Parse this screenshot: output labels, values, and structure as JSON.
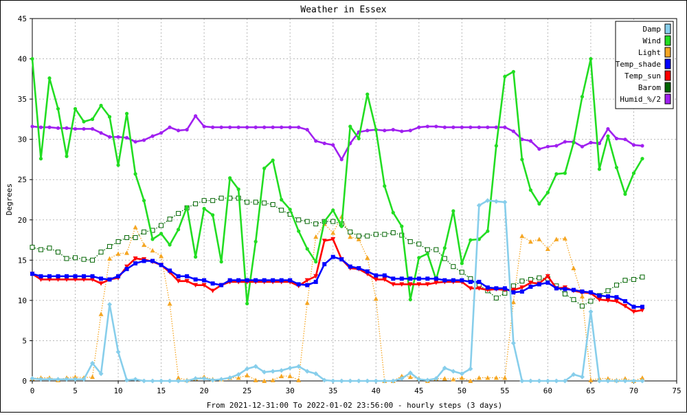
{
  "chart_data": {
    "type": "line",
    "title": "Weather in Essex",
    "xlabel": "From 2021-12-31:00 To 2022-01-02 23:56:00 - hourly steps (3 days)",
    "ylabel": "Degrees",
    "xlim": [
      0,
      75
    ],
    "ylim": [
      0,
      45
    ],
    "xticks": [
      0,
      5,
      10,
      15,
      20,
      25,
      30,
      35,
      40,
      45,
      50,
      55,
      60,
      65,
      70,
      75
    ],
    "yticks": [
      0,
      5,
      10,
      15,
      20,
      25,
      30,
      35,
      40,
      45
    ],
    "grid": true,
    "legend_position": "top-right",
    "x": [
      0,
      1,
      2,
      3,
      4,
      5,
      6,
      7,
      8,
      9,
      10,
      11,
      12,
      13,
      14,
      15,
      16,
      17,
      18,
      19,
      20,
      21,
      22,
      23,
      24,
      25,
      26,
      27,
      28,
      29,
      30,
      31,
      32,
      33,
      34,
      35,
      36,
      37,
      38,
      39,
      40,
      41,
      42,
      43,
      44,
      45,
      46,
      47,
      48,
      49,
      50,
      51,
      52,
      53,
      54,
      55,
      56,
      57,
      58,
      59,
      60,
      61,
      62,
      63,
      64,
      65,
      66,
      67,
      68,
      69,
      70,
      71
    ],
    "series": [
      {
        "name": "Damp",
        "color": "#87ceeb",
        "style": "solid",
        "marker": "diamond",
        "values": [
          0.3,
          0.2,
          0.2,
          0.2,
          0.2,
          0.2,
          0.2,
          2.2,
          0.9,
          9.5,
          3.6,
          0.1,
          0.2,
          0,
          0,
          0,
          0,
          0,
          0,
          0.3,
          0.3,
          0.1,
          0.2,
          0.4,
          0.8,
          1.5,
          1.8,
          1.1,
          1.2,
          1.3,
          1.6,
          1.8,
          1.2,
          0.9,
          0.1,
          0,
          0,
          0,
          0,
          0,
          0,
          0,
          0,
          0.3,
          1,
          0.2,
          0.1,
          0.3,
          1.6,
          1.2,
          0.9,
          1.5,
          21.8,
          22.4,
          22.3,
          22.2,
          4.7,
          0,
          0,
          0,
          0,
          0,
          0,
          0.8,
          0.5,
          8.6,
          0,
          0,
          0,
          0,
          0,
          0
        ]
      },
      {
        "name": "Wind",
        "color": "#22dd22",
        "style": "solid",
        "marker": "circle",
        "values": [
          40,
          27.6,
          37.6,
          33.8,
          27.9,
          33.8,
          32.2,
          32.5,
          34.2,
          32.8,
          26.8,
          33.2,
          25.7,
          22.4,
          17.6,
          18.3,
          16.9,
          18.8,
          21.6,
          15.4,
          21.4,
          20.6,
          14.8,
          25.2,
          23.8,
          9.6,
          17.3,
          26.4,
          27.4,
          22.5,
          21.3,
          18.6,
          16.4,
          14.8,
          19.8,
          21.2,
          19.2,
          31.6,
          30.1,
          35.6,
          31.2,
          24.2,
          20.9,
          19.2,
          10.1,
          15.3,
          15.8,
          12.6,
          16.5,
          21.1,
          14.6,
          17.5,
          17.6,
          18.6,
          29.2,
          37.8,
          38.4,
          27.5,
          23.7,
          22,
          23.4,
          25.7,
          25.8,
          29.6,
          35.3,
          40,
          26.3,
          30.4,
          26.5,
          23.2,
          25.8,
          27.6
        ]
      },
      {
        "name": "Light",
        "color": "#f5a623",
        "style": "dotted",
        "marker": "triangle",
        "values": [
          0.3,
          0.4,
          0.4,
          0.1,
          0.4,
          0.5,
          0.4,
          0.5,
          8.3,
          15.2,
          15.8,
          15.9,
          19.1,
          16.9,
          16.2,
          15.5,
          9.6,
          0.4,
          0.1,
          0.3,
          0.5,
          0.2,
          0.2,
          0.4,
          0.4,
          0.7,
          0.1,
          0,
          0.1,
          0.6,
          0.6,
          0.1,
          9.7,
          17.9,
          19.5,
          18.4,
          20.4,
          17.9,
          17.6,
          15.3,
          10.2,
          0,
          0,
          0.6,
          0.5,
          0.3,
          0,
          0.3,
          0.3,
          0.2,
          0.4,
          0,
          0.4,
          0.4,
          0.4,
          0.4,
          9.8,
          18,
          17.3,
          17.6,
          16.4,
          17.6,
          17.7,
          14,
          10.5,
          0.1,
          0.3,
          0.3,
          0.1,
          0.3,
          0,
          0.4
        ]
      },
      {
        "name": "Temp_shade",
        "color": "#0000ff",
        "style": "solid",
        "marker": "square",
        "values": [
          13.3,
          13,
          13,
          13,
          13,
          13,
          13,
          13,
          12.7,
          12.6,
          13,
          13.9,
          14.6,
          14.9,
          14.9,
          14.4,
          13.7,
          13,
          13,
          12.6,
          12.5,
          12.1,
          11.9,
          12.5,
          12.5,
          12.5,
          12.5,
          12.5,
          12.5,
          12.5,
          12.5,
          12,
          11.9,
          12.3,
          14.5,
          15.4,
          15.1,
          14.2,
          14,
          13.6,
          13.1,
          13.1,
          12.7,
          12.7,
          12.7,
          12.7,
          12.7,
          12.7,
          12.5,
          12.5,
          12.5,
          12.3,
          12.3,
          11.6,
          11.5,
          11.5,
          11,
          11.1,
          11.7,
          12,
          12.2,
          11.5,
          11.4,
          11.3,
          11.1,
          11,
          10.6,
          10.5,
          10.4,
          9.9,
          9.2,
          9.2
        ]
      },
      {
        "name": "Temp_sun",
        "color": "#ff0000",
        "style": "solid",
        "marker": "down-triangle",
        "values": [
          13.3,
          12.6,
          12.6,
          12.6,
          12.6,
          12.6,
          12.6,
          12.6,
          12.1,
          12.6,
          12.8,
          14.2,
          15.2,
          15.1,
          14.8,
          14.4,
          13.5,
          12.4,
          12.4,
          11.9,
          11.9,
          11.2,
          11.9,
          12.3,
          12.3,
          12.3,
          12.3,
          12.3,
          12.3,
          12.3,
          12.3,
          11.8,
          12.5,
          13,
          17.4,
          17.6,
          15.1,
          14,
          13.9,
          13.3,
          12.6,
          12.6,
          12,
          12,
          12,
          12,
          12,
          12.2,
          12.3,
          12.3,
          12.3,
          11.5,
          11.5,
          11.3,
          11.4,
          11.3,
          11.3,
          11.6,
          12.2,
          12.1,
          13,
          11.5,
          11.6,
          11.2,
          11,
          10.9,
          10.1,
          10,
          9.9,
          9.3,
          8.6,
          8.8
        ]
      },
      {
        "name": "Barom",
        "color": "#006400",
        "style": "dotted",
        "marker": "open-square",
        "values": [
          16.6,
          16.3,
          16.5,
          16,
          15.2,
          15.3,
          15.1,
          15,
          16,
          16.7,
          17.3,
          17.8,
          17.8,
          18.5,
          18.7,
          19.3,
          20.1,
          20.8,
          21.5,
          22,
          22.4,
          22.4,
          22.7,
          22.7,
          22.7,
          22.2,
          22.2,
          22.1,
          21.9,
          21.2,
          20.7,
          20,
          19.8,
          19.5,
          19.8,
          19.8,
          19.5,
          18.5,
          18,
          18,
          18.2,
          18.2,
          18.4,
          18.1,
          17.3,
          17,
          16.3,
          16.3,
          15.2,
          14.2,
          13.5,
          12.7,
          11.9,
          11.2,
          10.3,
          10.9,
          11.8,
          12.4,
          12.6,
          12.8,
          12.7,
          11.8,
          10.8,
          10.1,
          9.3,
          9.9,
          10.6,
          11.2,
          11.9,
          12.5,
          12.6,
          12.9
        ]
      },
      {
        "name": "Humid_%/2",
        "color": "#a020f0",
        "style": "solid",
        "marker": "circle",
        "values": [
          31.6,
          31.5,
          31.5,
          31.4,
          31.4,
          31.3,
          31.3,
          31.3,
          30.8,
          30.3,
          30.3,
          30.2,
          29.7,
          29.9,
          30.4,
          30.8,
          31.5,
          31.1,
          31.2,
          32.9,
          31.6,
          31.5,
          31.5,
          31.5,
          31.5,
          31.5,
          31.5,
          31.5,
          31.5,
          31.5,
          31.5,
          31.5,
          31.2,
          29.8,
          29.5,
          29.3,
          27.5,
          29.5,
          30.9,
          31.1,
          31.2,
          31.1,
          31.2,
          31,
          31.1,
          31.5,
          31.6,
          31.6,
          31.5,
          31.5,
          31.5,
          31.5,
          31.5,
          31.5,
          31.5,
          31.5,
          31,
          30,
          29.8,
          28.8,
          29.1,
          29.2,
          29.7,
          29.7,
          29.1,
          29.6,
          29.5,
          31.3,
          30.1,
          30,
          29.3,
          29.2
        ]
      }
    ]
  }
}
